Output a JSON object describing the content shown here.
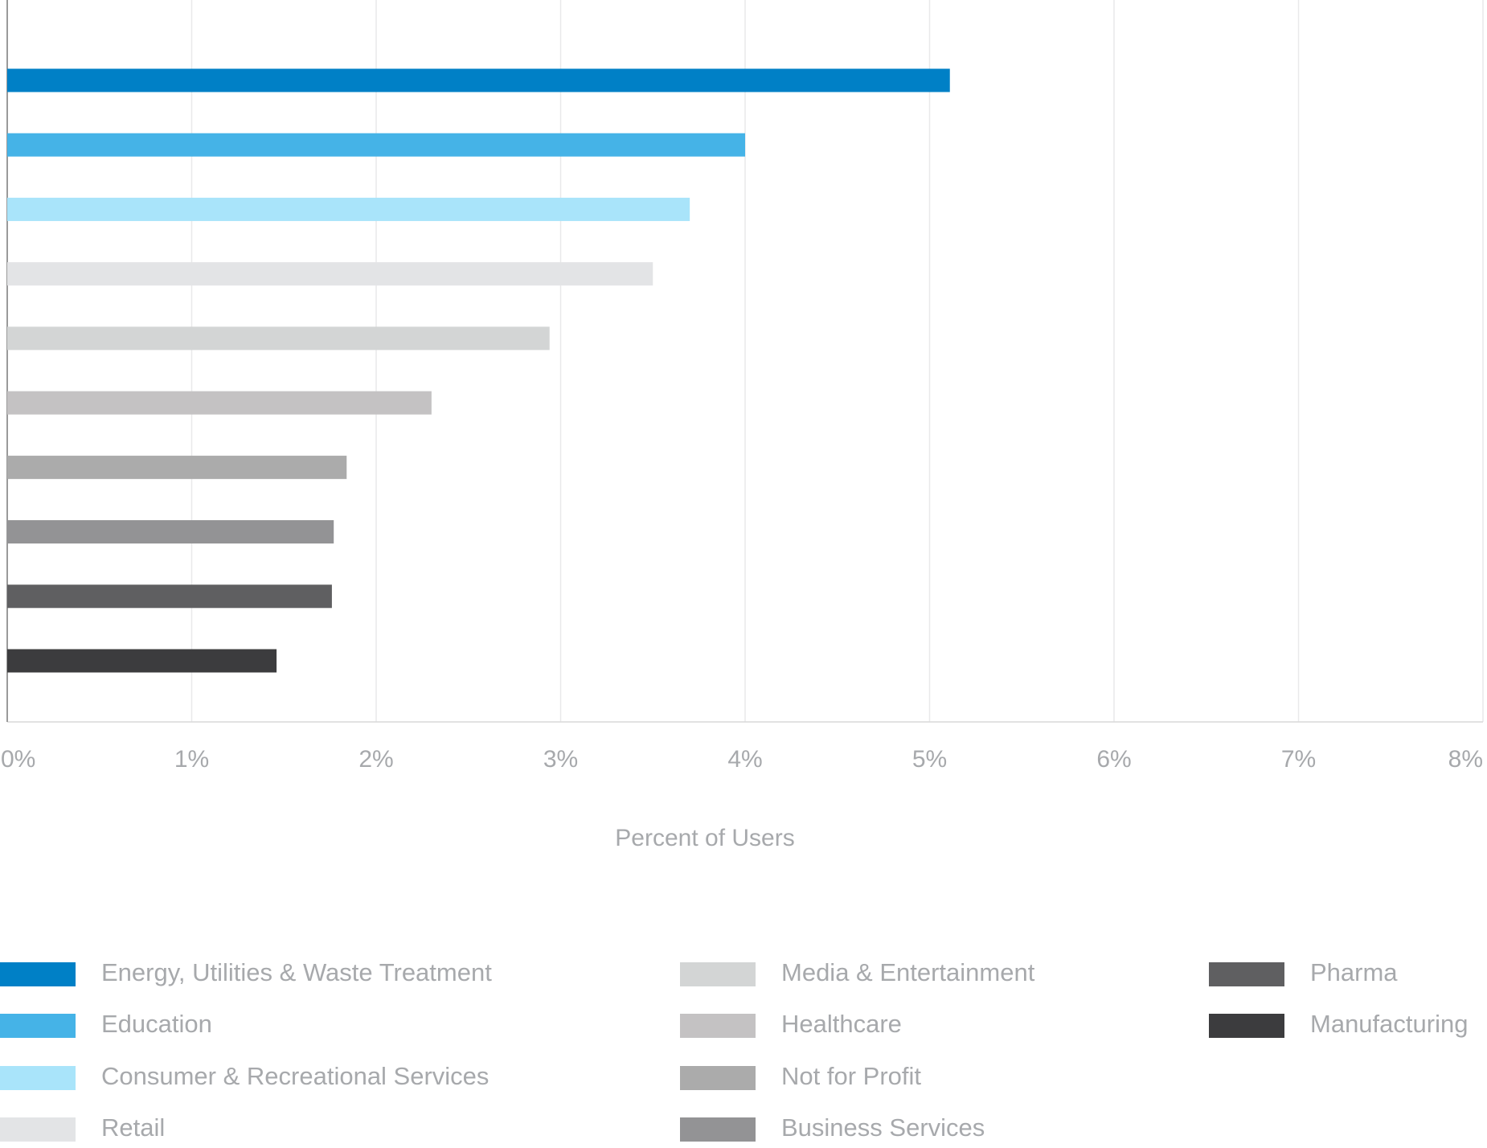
{
  "chart_data": {
    "type": "bar",
    "orientation": "horizontal",
    "x_label": "Percent of Users",
    "xlim": [
      0,
      8
    ],
    "xticks": [
      {
        "value": 0,
        "label": "0%"
      },
      {
        "value": 1,
        "label": "1%"
      },
      {
        "value": 2,
        "label": "2%"
      },
      {
        "value": 3,
        "label": "3%"
      },
      {
        "value": 4,
        "label": "4%"
      },
      {
        "value": 5,
        "label": "5%"
      },
      {
        "value": 6,
        "label": "6%"
      },
      {
        "value": 7,
        "label": "7%"
      },
      {
        "value": 8,
        "label": "8%"
      }
    ],
    "grid": true,
    "series": [
      {
        "name": "Energy, Utilities & Waste Treatment",
        "color": "#0080c6",
        "values": [
          5.11
        ]
      },
      {
        "name": "Education",
        "color": "#45b3e7",
        "values": [
          4.0
        ]
      },
      {
        "name": "Consumer & Recreational Services",
        "color": "#a9e4fa",
        "values": [
          3.7
        ]
      },
      {
        "name": "Retail",
        "color": "#e3e4e6",
        "values": [
          3.5
        ]
      },
      {
        "name": "Media & Entertainment",
        "color": "#d3d5d5",
        "values": [
          2.94
        ]
      },
      {
        "name": "Healthcare",
        "color": "#c4c2c3",
        "values": [
          2.3
        ]
      },
      {
        "name": "Not for Profit",
        "color": "#ababab",
        "values": [
          1.84
        ]
      },
      {
        "name": "Business Services",
        "color": "#939395",
        "values": [
          1.77
        ]
      },
      {
        "name": "Pharma",
        "color": "#5f5f61",
        "values": [
          1.76
        ]
      },
      {
        "name": "Manufacturing",
        "color": "#3c3c3e",
        "values": [
          1.46
        ]
      }
    ]
  }
}
